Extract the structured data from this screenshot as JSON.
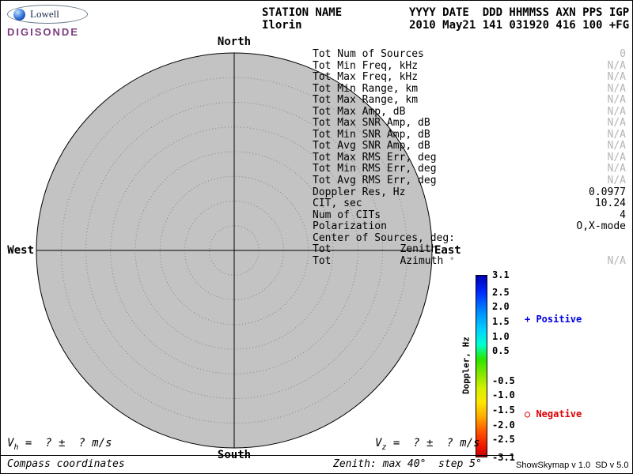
{
  "logo": {
    "brand": "Lowell",
    "product": "DIGISONDE"
  },
  "header": {
    "station_label": "STATION NAME",
    "station_value": "Ilorin",
    "fields_label": "YYYY DATE  DDD HHMMSS AXN PPS IGP",
    "fields_value": "2010 May21 141 031920 416 100 +FG"
  },
  "compass": {
    "north": "North",
    "south": "South",
    "east": "East",
    "west": "West"
  },
  "stats": {
    "rows": [
      {
        "label": "Tot Num of Sources",
        "value": "0",
        "dim": true
      },
      {
        "label": "Tot Min Freq, kHz",
        "value": "N/A",
        "dim": true
      },
      {
        "label": "Tot Max Freq, kHz",
        "value": "N/A",
        "dim": true
      },
      {
        "label": "Tot Min Range, km",
        "value": "N/A",
        "dim": true
      },
      {
        "label": "Tot Max Range, km",
        "value": "N/A",
        "dim": true
      },
      {
        "label": "Tot Max Amp, dB",
        "value": "N/A",
        "dim": true
      },
      {
        "label": "Tot Max SNR Amp, dB",
        "value": "N/A",
        "dim": true
      },
      {
        "label": "Tot Min SNR Amp, dB",
        "value": "N/A",
        "dim": true
      },
      {
        "label": "Tot Avg SNR Amp, dB",
        "value": "N/A",
        "dim": true
      },
      {
        "label": "Tot Max RMS Err, deg",
        "value": "N/A",
        "dim": true
      },
      {
        "label": "Tot Min RMS Err, deg",
        "value": "N/A",
        "dim": true
      },
      {
        "label": "Tot Avg RMS Err, deg",
        "value": "N/A",
        "dim": true
      },
      {
        "label": "Doppler Res, Hz",
        "value": "0.0977",
        "dim": false
      },
      {
        "label": "CIT, sec",
        "value": "10.24",
        "dim": false
      },
      {
        "label": "Num of CITs",
        "value": "4",
        "dim": false
      },
      {
        "label": "Polarization",
        "value": "O,X-mode",
        "dim": false
      },
      {
        "label": "Center of Sources, deg:",
        "value": "",
        "dim": false
      },
      {
        "label": "Tot",
        "mid": "Zenith",
        "value": "",
        "dim": true
      },
      {
        "label": "Tot",
        "mid": "Azimuth",
        "sym": "°",
        "value": "N/A",
        "dim": true
      }
    ]
  },
  "colorbar": {
    "title": "Doppler, Hz",
    "max": 3.1,
    "min": -3.1,
    "ticks": [
      "3.1",
      "2.5",
      "2.0",
      "1.5",
      "1.0",
      "0.5",
      "-0.5",
      "-1.0",
      "-1.5",
      "-2.0",
      "-2.5",
      "-3.1"
    ],
    "positive_label": "+ Positive",
    "negative_label": "○ Negative",
    "positive_color": "#0000e6",
    "negative_color": "#dd0000"
  },
  "footer": {
    "vh_var": "V",
    "vh_sub": "h",
    "vh_rest": " =  ? ±  ? m/s",
    "vz_var": "V",
    "vz_sub": "z",
    "vz_rest": " =  ? ±  ? m/s",
    "coords_note": "Compass coordinates",
    "zenith_note": "Zenith: max 40°  step 5°",
    "version": "ShowSkymap v 1.0  SD v 5.0"
  }
}
